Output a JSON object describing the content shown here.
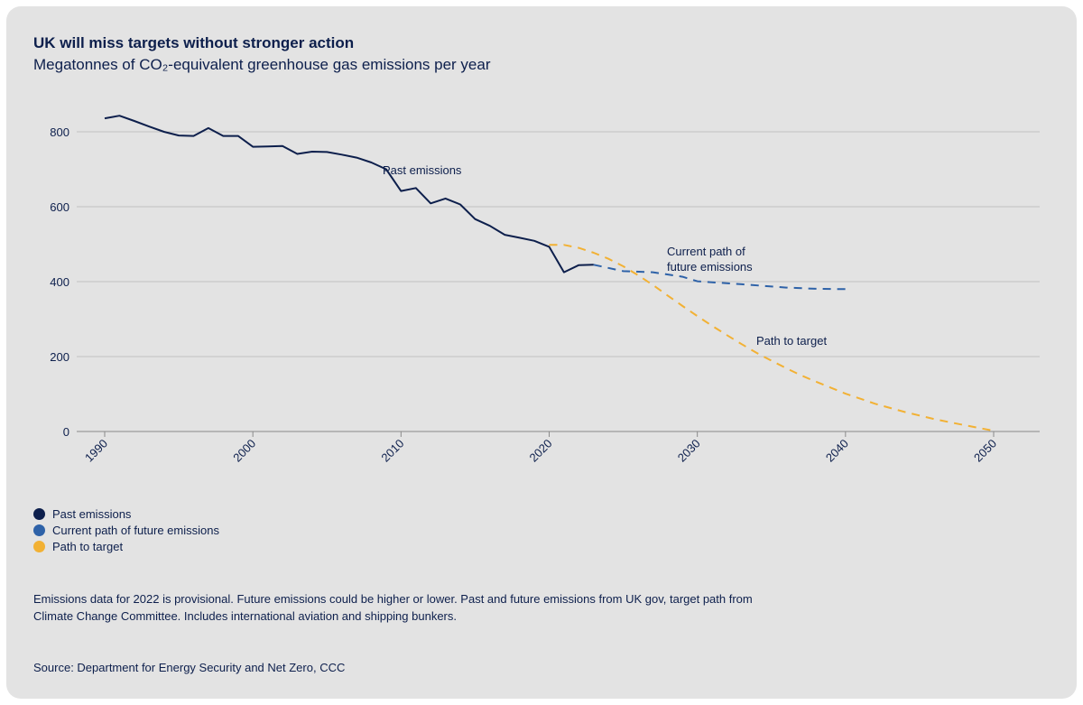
{
  "header": {
    "title": "UK will miss targets without stronger action",
    "subtitle": "Megatonnes of CO₂-equivalent greenhouse gas emissions per year"
  },
  "legend": [
    {
      "label": "Past emissions",
      "color": "#0d1f4c"
    },
    {
      "label": "Current path of future emissions",
      "color": "#2e62a8"
    },
    {
      "label": "Path to target",
      "color": "#f2b134"
    }
  ],
  "footer": {
    "note": "Emissions data for 2022 is provisional. Future emissions could be higher or lower. Past and future emissions from UK gov, target path from Climate Change Committee. Includes international aviation and shipping bunkers.",
    "source": "Source: Department for Energy Security and Net Zero, CCC"
  },
  "chart_data": {
    "type": "line",
    "xlim": [
      1990,
      2050
    ],
    "ylim": [
      0,
      850
    ],
    "x_ticks": [
      1990,
      2000,
      2010,
      2020,
      2030,
      2040,
      2050
    ],
    "y_ticks": [
      0,
      200,
      400,
      600,
      800
    ],
    "grid": "horizontal",
    "legend_position": "bottom-left",
    "series": [
      {
        "name": "Past emissions",
        "color": "#0d1f4c",
        "style": "solid",
        "label": "Past emissions",
        "points": [
          [
            1990,
            836
          ],
          [
            1991,
            843
          ],
          [
            1992,
            829
          ],
          [
            1993,
            814
          ],
          [
            1994,
            800
          ],
          [
            1995,
            790
          ],
          [
            1996,
            789
          ],
          [
            1997,
            810
          ],
          [
            1998,
            789
          ],
          [
            1999,
            789
          ],
          [
            2000,
            760
          ],
          [
            2001,
            761
          ],
          [
            2002,
            762
          ],
          [
            2003,
            741
          ],
          [
            2004,
            747
          ],
          [
            2005,
            746
          ],
          [
            2006,
            739
          ],
          [
            2007,
            731
          ],
          [
            2008,
            718
          ],
          [
            2009,
            700
          ],
          [
            2010,
            642
          ],
          [
            2011,
            650
          ],
          [
            2012,
            609
          ],
          [
            2013,
            622
          ],
          [
            2014,
            606
          ],
          [
            2015,
            567
          ],
          [
            2016,
            549
          ],
          [
            2017,
            525
          ],
          [
            2018,
            517
          ],
          [
            2019,
            509
          ],
          [
            2020,
            493
          ],
          [
            2021,
            425
          ],
          [
            2022,
            444
          ],
          [
            2023,
            445
          ]
        ]
      },
      {
        "name": "Current path of future emissions",
        "color": "#2e62a8",
        "style": "dashed",
        "label": "Current path of\nfuture emissions",
        "points": [
          [
            2023,
            445
          ],
          [
            2025,
            428
          ],
          [
            2027,
            425
          ],
          [
            2029,
            413
          ],
          [
            2030,
            401
          ],
          [
            2033,
            393
          ],
          [
            2036,
            384
          ],
          [
            2038,
            381
          ],
          [
            2040,
            380
          ]
        ]
      },
      {
        "name": "Path to target",
        "color": "#f2b134",
        "style": "dashed",
        "label": "Path to target",
        "points": [
          [
            2020,
            498
          ],
          [
            2021,
            498
          ],
          [
            2022,
            490
          ],
          [
            2023,
            477
          ],
          [
            2024,
            461
          ],
          [
            2025,
            441
          ],
          [
            2026,
            417
          ],
          [
            2027,
            391
          ],
          [
            2028,
            363
          ],
          [
            2029,
            335
          ],
          [
            2030,
            308
          ],
          [
            2031,
            282
          ],
          [
            2032,
            257
          ],
          [
            2033,
            233
          ],
          [
            2034,
            210
          ],
          [
            2035,
            189
          ],
          [
            2036,
            169
          ],
          [
            2037,
            150
          ],
          [
            2038,
            133
          ],
          [
            2039,
            117
          ],
          [
            2040,
            101
          ],
          [
            2042,
            74
          ],
          [
            2044,
            52
          ],
          [
            2046,
            33
          ],
          [
            2048,
            17
          ],
          [
            2050,
            2
          ]
        ]
      }
    ]
  }
}
